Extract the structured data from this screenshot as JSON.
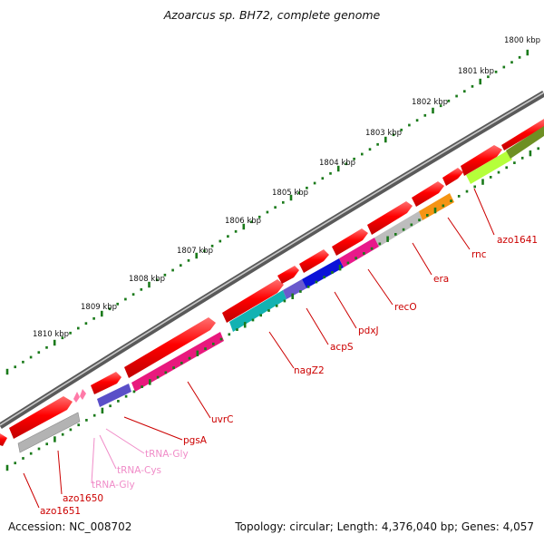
{
  "title": "Azoarcus sp. BH72, complete genome",
  "accession": "Accession: NC_008702",
  "summary": "Topology: circular; Length: 4,376,040 bp; Genes: 4,057",
  "colors": {
    "backbone": "#6e6e6e",
    "forward_gene": "#ff0000",
    "tick": "#1a7a1a",
    "gene_label": "#cc0000",
    "trna_label": "#f08cc8"
  },
  "scale_labels": [
    "1800 kbp",
    "1801 kbp",
    "1802 kbp",
    "1803 kbp",
    "1804 kbp",
    "1805 kbp",
    "1806 kbp",
    "1807 kbp",
    "1808 kbp",
    "1809 kbp",
    "1810 kbp"
  ],
  "gene_labels": [
    "azo1641",
    "rnc",
    "era",
    "recO",
    "pdxJ",
    "acpS",
    "nagZ2",
    "uvrC",
    "pgsA",
    "tRNA-Gly",
    "tRNA-Cys",
    "tRNA-Gly",
    "azo1650",
    "azo1651"
  ]
}
